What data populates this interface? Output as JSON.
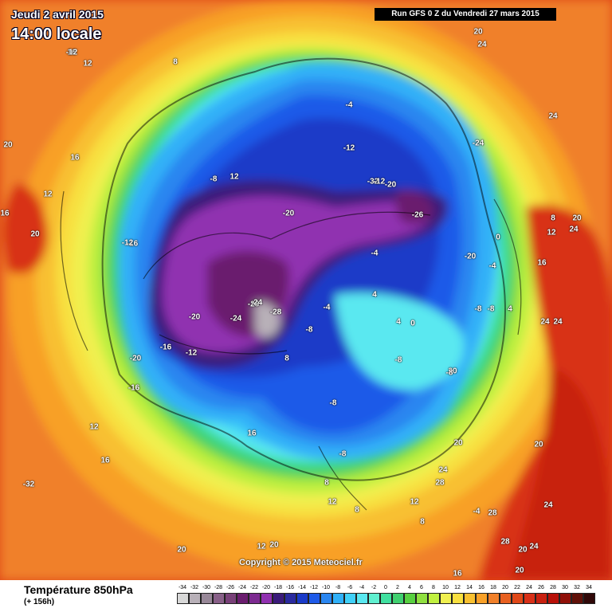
{
  "header": {
    "date": "Jeudi 2 avril 2015",
    "time": "14:00 locale",
    "run": "Run GFS 0 Z du Vendredi 27 mars 2015"
  },
  "copyright": "Copyright © 2015 Meteociel.fr",
  "footer": {
    "title": "Température 850hPa",
    "subtitle": "(+ 156h)"
  },
  "legend": {
    "values": [
      "-34",
      "-32",
      "-30",
      "-28",
      "-26",
      "-24",
      "-22",
      "-20",
      "-18",
      "-16",
      "-14",
      "-12",
      "-10",
      "-8",
      "-6",
      "-4",
      "-2",
      "0",
      "2",
      "4",
      "6",
      "8",
      "10",
      "12",
      "14",
      "16",
      "18",
      "20",
      "22",
      "24",
      "26",
      "28",
      "30",
      "32",
      "34"
    ],
    "colors": [
      "#d8d8d8",
      "#b8b0b8",
      "#988898",
      "#886088",
      "#784078",
      "#6a1c6e",
      "#7c2a90",
      "#9030b0",
      "#3a1a7a",
      "#2a2a9e",
      "#1a3ac8",
      "#1e5ae8",
      "#2a86f0",
      "#30b0f8",
      "#40d0f8",
      "#5ae8f0",
      "#60f0d0",
      "#40e0a0",
      "#40d070",
      "#58d040",
      "#90e040",
      "#c0f040",
      "#f0f050",
      "#f8e040",
      "#f8c030",
      "#f8a028",
      "#f0802a",
      "#e86020",
      "#e04818",
      "#d83018",
      "#c82010",
      "#b81008",
      "#901008",
      "#601008",
      "#300808"
    ]
  },
  "map_labels": [
    "16",
    "12",
    "8",
    "20",
    "16",
    "12",
    "16",
    "20",
    "20",
    "24",
    "-4",
    "-8",
    "-12",
    "-16",
    "-20",
    "-24",
    "-28",
    "-32",
    "-20",
    "-26",
    "-24",
    "-20",
    "-4",
    "0",
    "4",
    "8",
    "12",
    "16",
    "24",
    "24",
    "24",
    "20",
    "20",
    "24",
    "28",
    "28",
    "28",
    "24",
    "20",
    "20",
    "12",
    "8",
    "4",
    "-4",
    "-8",
    "-12",
    "-20",
    "-16",
    "-16",
    "-20",
    "-24",
    "-28",
    "-32",
    "12",
    "8",
    "12",
    "20",
    "20",
    "16",
    "12",
    "8",
    "4",
    "0",
    "-4",
    "-8",
    "-12",
    "-12",
    "-8",
    "-8",
    "-8",
    "-4",
    "16",
    "20",
    "24",
    "24",
    "20",
    "16",
    "8",
    "12",
    "-8",
    "-8",
    "-12"
  ]
}
